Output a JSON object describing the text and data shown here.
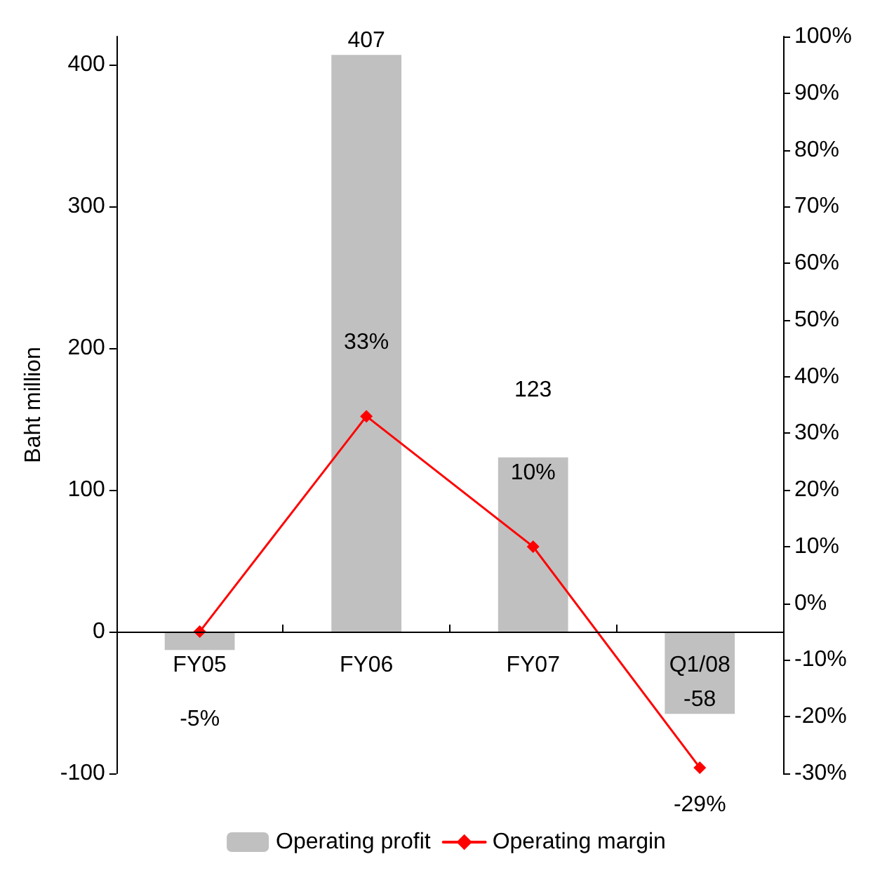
{
  "chart_data": {
    "type": "bar",
    "ylabel": "Baht million",
    "categories": [
      "FY05",
      "FY06",
      "FY07",
      "Q1/08"
    ],
    "series": [
      {
        "name": "Operating profit",
        "color": "#c0c0c0",
        "values": [
          -13,
          407,
          123,
          -58
        ],
        "value_labels": [
          null,
          "407",
          "123",
          "-58"
        ]
      },
      {
        "name": "Operating margin",
        "type": "line",
        "axis": "y2",
        "color": "#ff0000",
        "values": [
          -5,
          33,
          10,
          -29
        ],
        "value_labels": [
          "-5%",
          "33%",
          "10%",
          "-29%"
        ]
      }
    ],
    "ylim": [
      -100,
      420
    ],
    "yticks": [
      -100,
      0,
      100,
      200,
      300,
      400
    ],
    "y2lim": [
      -30,
      100
    ],
    "y2ticks": [
      {
        "value": -30,
        "label": "-30%"
      },
      {
        "value": -20,
        "label": "-20%"
      },
      {
        "value": -10,
        "label": "-10%"
      },
      {
        "value": 0,
        "label": "0%"
      },
      {
        "value": 10,
        "label": "10%"
      },
      {
        "value": 20,
        "label": "20%"
      },
      {
        "value": 30,
        "label": "30%"
      },
      {
        "value": 40,
        "label": "40%"
      },
      {
        "value": 50,
        "label": "50%"
      },
      {
        "value": 60,
        "label": "60%"
      },
      {
        "value": 70,
        "label": "70%"
      },
      {
        "value": 80,
        "label": "80%"
      },
      {
        "value": 90,
        "label": "90%"
      },
      {
        "value": 100,
        "label": "100%"
      }
    ],
    "grid": false,
    "legend": "bottom",
    "marker": "diamond",
    "line_style": "solid"
  }
}
